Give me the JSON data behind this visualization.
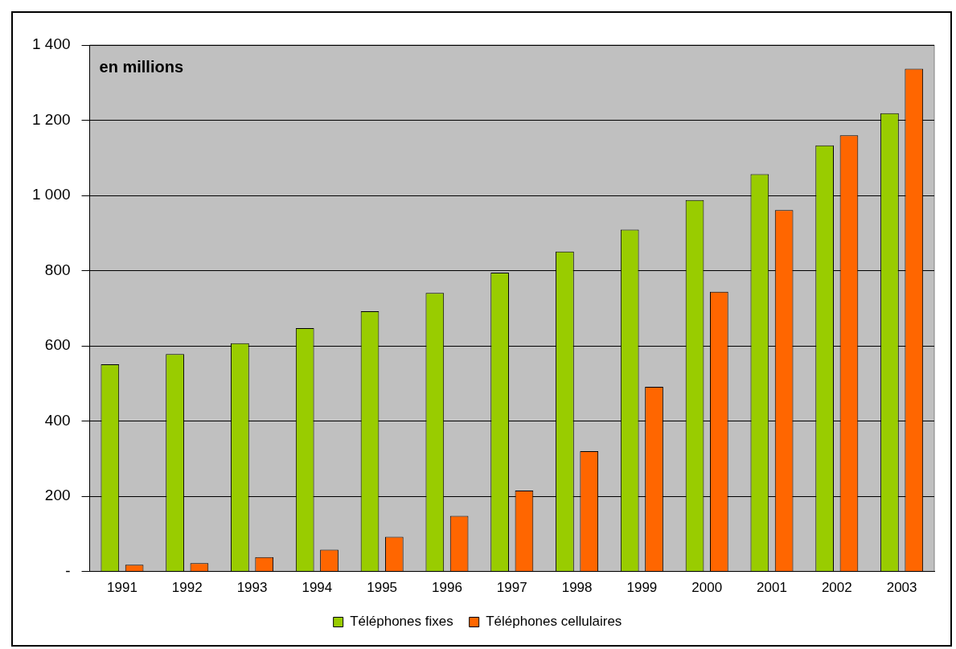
{
  "chart_data": {
    "type": "bar",
    "categories": [
      "1991",
      "1992",
      "1993",
      "1994",
      "1995",
      "1996",
      "1997",
      "1998",
      "1999",
      "2000",
      "2001",
      "2002",
      "2003"
    ],
    "series": [
      {
        "name": "Téléphones fixes",
        "color": "#99cc00",
        "values": [
          551,
          578,
          607,
          647,
          692,
          741,
          795,
          851,
          909,
          988,
          1057,
          1133,
          1219
        ]
      },
      {
        "name": "Téléphones cellulaires",
        "color": "#ff6600",
        "values": [
          18,
          22,
          38,
          58,
          92,
          148,
          215,
          320,
          491,
          744,
          961,
          1160,
          1337
        ]
      }
    ],
    "ylim": [
      0,
      1400
    ],
    "yticks": [
      {
        "value": 0,
        "label": "-"
      },
      {
        "value": 200,
        "label": "200"
      },
      {
        "value": 400,
        "label": "400"
      },
      {
        "value": 600,
        "label": "600"
      },
      {
        "value": 800,
        "label": "800"
      },
      {
        "value": 1000,
        "label": "1 000"
      },
      {
        "value": 1200,
        "label": "1 200"
      },
      {
        "value": 1400,
        "label": "1 400"
      }
    ],
    "grid": "y",
    "legend": "bottom",
    "annotations": [
      "en millions"
    ]
  }
}
